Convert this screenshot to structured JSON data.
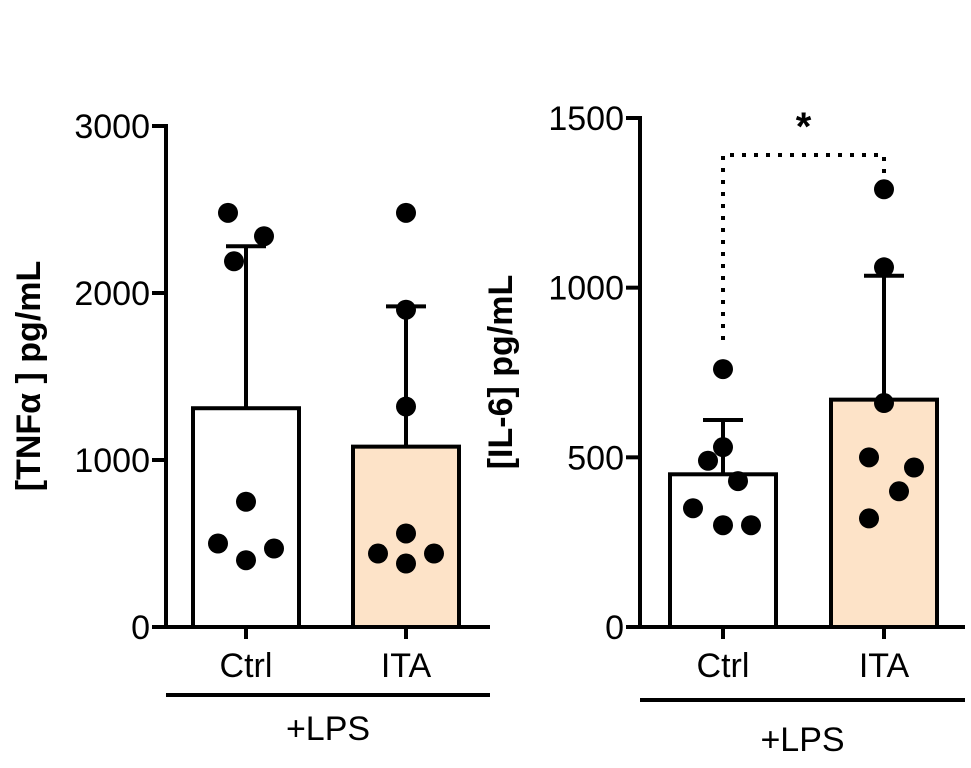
{
  "chart_data": [
    {
      "type": "bar",
      "ylabel": "[TNFα ] pg/mL",
      "ylim": [
        0,
        3000
      ],
      "yticks": [
        0,
        1000,
        2000,
        3000
      ],
      "categories": [
        "Ctrl",
        "ITA"
      ],
      "group_label": "+LPS",
      "colors": [
        "#ffffff",
        "#fde3c8"
      ],
      "series": [
        {
          "values": [
            1310,
            1080
          ],
          "error_upper": [
            2280,
            1920
          ],
          "points": [
            [
              2480,
              2340,
              2190,
              750,
              500,
              400,
              470
            ],
            [
              2480,
              1900,
              1320,
              560,
              440,
              380,
              440
            ]
          ]
        }
      ]
    },
    {
      "type": "bar",
      "ylabel": "[IL-6] pg/mL",
      "ylim": [
        0,
        1500
      ],
      "yticks": [
        0,
        500,
        1000,
        1500
      ],
      "categories": [
        "Ctrl",
        "ITA"
      ],
      "group_label": "+LPS",
      "colors": [
        "#ffffff",
        "#fde3c8"
      ],
      "series": [
        {
          "values": [
            450,
            670
          ],
          "error_upper": [
            610,
            1035
          ],
          "points": [
            [
              760,
              530,
              490,
              430,
              350,
              300,
              300
            ],
            [
              1290,
              1060,
              660,
              500,
              470,
              400,
              320
            ]
          ]
        }
      ],
      "significance": {
        "label": "*",
        "between": [
          0,
          1
        ]
      }
    }
  ]
}
